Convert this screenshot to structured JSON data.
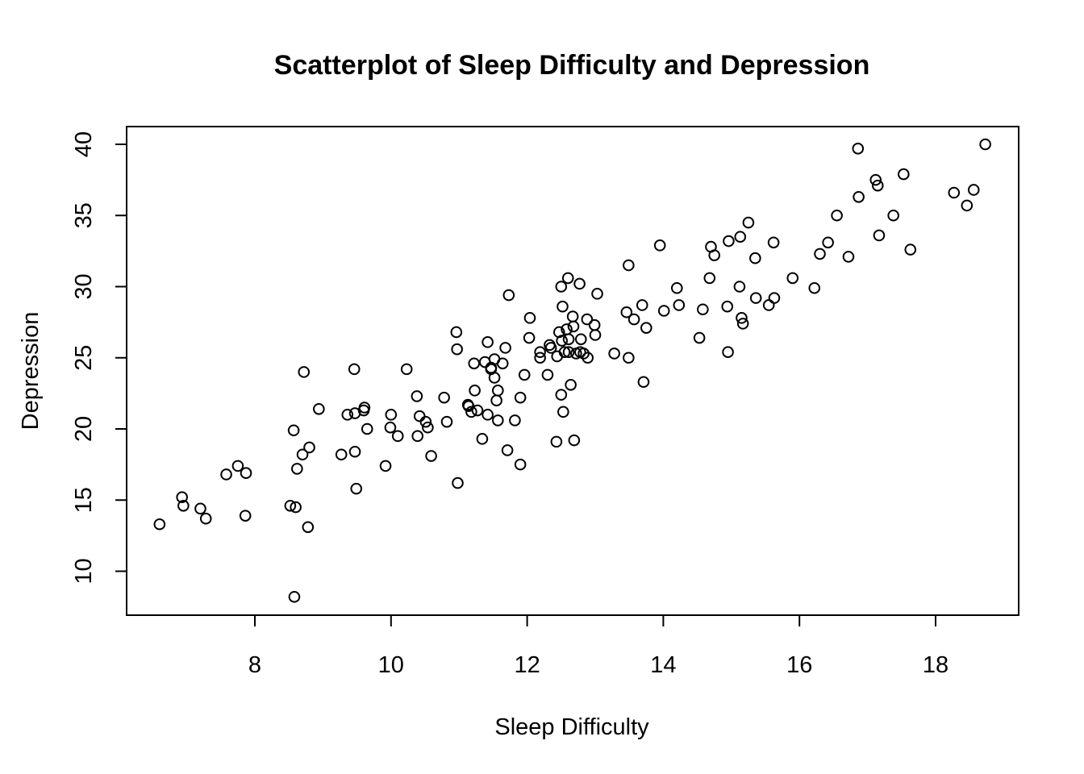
{
  "chart_data": {
    "type": "scatter",
    "title": "Scatterplot of Sleep Difficulty and Depression",
    "xlabel": "Sleep Difficulty",
    "ylabel": "Depression",
    "xlim": [
      6.4,
      19.3
    ],
    "ylim": [
      7.0,
      41.3
    ],
    "xticks": [
      8,
      10,
      12,
      14,
      16,
      18
    ],
    "yticks": [
      10,
      15,
      20,
      25,
      30,
      35,
      40
    ],
    "grid": false,
    "legend": "none",
    "x": [
      6.6,
      6.93,
      6.95,
      7.2,
      7.28,
      7.58,
      7.75,
      7.86,
      7.87,
      8.52,
      8.57,
      8.58,
      8.6,
      8.62,
      8.7,
      8.72,
      8.78,
      8.8,
      8.94,
      9.27,
      9.36,
      9.46,
      9.47,
      9.47,
      9.49,
      9.6,
      9.61,
      9.65,
      9.92,
      9.99,
      10.0,
      10.1,
      10.23,
      10.38,
      10.39,
      10.42,
      10.51,
      10.54,
      10.59,
      10.78,
      10.82,
      10.96,
      10.97,
      10.98,
      11.13,
      11.14,
      11.18,
      11.22,
      11.23,
      11.27,
      11.34,
      11.38,
      11.42,
      11.42,
      11.47,
      11.47,
      11.52,
      11.52,
      11.55,
      11.57,
      11.57,
      11.64,
      11.68,
      11.71,
      11.73,
      11.82,
      11.9,
      11.9,
      11.96,
      12.03,
      12.04,
      12.19,
      12.19,
      12.3,
      12.33,
      12.35,
      12.43,
      12.44,
      12.47,
      12.5,
      12.5,
      12.51,
      12.52,
      12.53,
      12.55,
      12.58,
      12.6,
      12.61,
      12.61,
      12.64,
      12.67,
      12.68,
      12.69,
      12.72,
      12.77,
      12.78,
      12.79,
      12.83,
      12.88,
      12.89,
      12.99,
      13.0,
      13.03,
      13.28,
      13.46,
      13.49,
      13.49,
      13.57,
      13.69,
      13.71,
      13.75,
      13.95,
      14.01,
      14.2,
      14.23,
      14.53,
      14.58,
      14.68,
      14.7,
      14.75,
      14.94,
      14.95,
      14.96,
      15.12,
      15.13,
      15.15,
      15.17,
      15.25,
      15.35,
      15.36,
      15.55,
      15.62,
      15.63,
      15.9,
      16.22,
      16.3,
      16.42,
      16.55,
      16.72,
      16.86,
      16.87,
      17.12,
      17.15,
      17.17,
      17.38,
      17.53,
      17.63,
      18.27,
      18.46,
      18.56,
      18.73
    ],
    "y": [
      13.3,
      15.2,
      14.6,
      14.4,
      13.7,
      16.8,
      17.4,
      13.9,
      16.9,
      14.6,
      19.9,
      8.2,
      14.5,
      17.2,
      18.2,
      24.0,
      13.1,
      18.7,
      21.4,
      18.2,
      21.0,
      24.2,
      18.4,
      21.1,
      15.8,
      21.3,
      21.5,
      20.0,
      17.4,
      20.1,
      21.0,
      19.5,
      24.2,
      22.3,
      19.5,
      20.9,
      20.5,
      20.1,
      18.1,
      22.2,
      20.5,
      26.8,
      25.6,
      16.2,
      21.7,
      21.6,
      21.2,
      24.6,
      22.7,
      21.3,
      19.3,
      24.7,
      21.0,
      26.1,
      24.3,
      24.2,
      23.6,
      24.9,
      22.0,
      22.7,
      20.6,
      24.6,
      25.7,
      18.5,
      29.4,
      20.6,
      17.5,
      22.2,
      23.8,
      26.4,
      27.8,
      25.0,
      25.4,
      23.8,
      25.9,
      25.7,
      19.1,
      25.1,
      26.8,
      30.0,
      22.4,
      26.2,
      28.6,
      21.2,
      25.4,
      27.0,
      30.6,
      25.4,
      26.3,
      23.1,
      27.9,
      27.2,
      19.2,
      25.3,
      30.2,
      25.4,
      26.3,
      25.3,
      27.7,
      25.0,
      27.3,
      26.6,
      29.5,
      25.3,
      28.2,
      31.5,
      25.0,
      27.7,
      28.7,
      23.3,
      27.1,
      32.9,
      28.3,
      29.9,
      28.7,
      26.4,
      28.4,
      30.6,
      32.8,
      32.2,
      28.6,
      25.4,
      33.2,
      30.0,
      33.5,
      27.8,
      27.4,
      34.5,
      32.0,
      29.2,
      28.7,
      33.1,
      29.2,
      30.6,
      29.9,
      32.3,
      33.1,
      35.0,
      32.1,
      39.7,
      36.3,
      37.5,
      37.1,
      33.6,
      35.0,
      37.9,
      32.6,
      36.6,
      35.7,
      36.8,
      40.0
    ]
  }
}
